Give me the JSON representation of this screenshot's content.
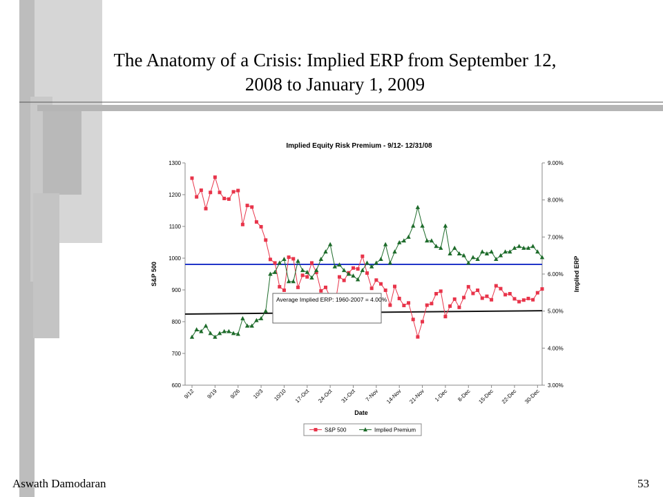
{
  "slide": {
    "title_line1": "The Anatomy of a Crisis: Implied ERP from September 12,",
    "title_line2": "2008 to January 1, 2009",
    "footer": "Aswath Damodaran",
    "page_number": "53"
  },
  "chart_data": {
    "type": "line",
    "title": "Implied Equity Risk Premium - 9/12- 12/31/08",
    "x_label": "Date",
    "y_label": "S&P 500",
    "y2_label": "Implied ERP",
    "categories": [
      "9/12",
      null,
      null,
      null,
      null,
      "9/19",
      null,
      null,
      null,
      null,
      "9/26",
      null,
      null,
      null,
      null,
      "10/3",
      null,
      null,
      null,
      null,
      "10/10",
      null,
      null,
      null,
      null,
      "17-Oct",
      null,
      null,
      null,
      null,
      "24-Oct",
      null,
      null,
      null,
      null,
      "31-Oct",
      null,
      null,
      null,
      null,
      "7-Nov",
      null,
      null,
      null,
      null,
      "14-Nov",
      null,
      null,
      null,
      null,
      "21-Nov",
      null,
      null,
      null,
      null,
      "1-Dec",
      null,
      null,
      null,
      null,
      "8-Dec",
      null,
      null,
      null,
      null,
      "15-Dec",
      null,
      null,
      null,
      null,
      "22-Dec",
      null,
      null,
      null,
      null,
      "30-Dec",
      null
    ],
    "series": [
      {
        "name": "S&P 500",
        "color": "#e8344a",
        "marker": "square",
        "values": [
          1252,
          1193,
          1214,
          1156,
          1207,
          1255,
          1207,
          1188,
          1186,
          1209,
          1213,
          1106,
          1166,
          1161,
          1114,
          1099,
          1057,
          996,
          985,
          910,
          899,
          1003,
          998,
          908,
          946,
          941,
          985,
          955,
          897,
          908,
          877,
          849,
          941,
          930,
          954,
          969,
          966,
          1006,
          953,
          905,
          931,
          919,
          899,
          852,
          911,
          873,
          851,
          859,
          807,
          752,
          800,
          852,
          857,
          888,
          896,
          816,
          849,
          871,
          845,
          876,
          910,
          889,
          899,
          874,
          880,
          869,
          913,
          904,
          885,
          888,
          872,
          863,
          868,
          873,
          869,
          891,
          903
        ]
      },
      {
        "name": "Implied Premium",
        "color": "#1d6b2a",
        "marker": "triangle",
        "axis": "y2",
        "values": [
          4.3,
          4.5,
          4.45,
          4.6,
          4.4,
          4.3,
          4.4,
          4.45,
          4.45,
          4.4,
          4.38,
          4.8,
          4.6,
          4.6,
          4.75,
          4.8,
          5.0,
          6.0,
          6.05,
          6.3,
          6.4,
          5.8,
          5.8,
          6.35,
          6.1,
          6.05,
          5.9,
          6.1,
          6.4,
          6.6,
          6.8,
          6.2,
          6.25,
          6.1,
          6.0,
          5.95,
          5.85,
          6.1,
          6.3,
          6.2,
          6.3,
          6.4,
          6.8,
          6.3,
          6.6,
          6.85,
          6.9,
          7.0,
          7.3,
          7.8,
          7.3,
          6.9,
          6.9,
          6.75,
          6.7,
          7.3,
          6.55,
          6.7,
          6.55,
          6.5,
          6.3,
          6.45,
          6.4,
          6.6,
          6.55,
          6.6,
          6.4,
          6.5,
          6.6,
          6.6,
          6.7,
          6.75,
          6.7,
          6.7,
          6.75,
          6.6,
          6.45
        ]
      }
    ],
    "reference_lines": [
      {
        "color": "#2035c8",
        "axis": "y2",
        "values": [
          6.26,
          6.26
        ]
      },
      {
        "color": "#111111",
        "axis": "y2",
        "values": [
          4.92,
          5.01
        ]
      }
    ],
    "annotation": "Average Implied ERP: 1960-2007 = 4.00%",
    "ylim": [
      600,
      1300
    ],
    "yticks": [
      600,
      700,
      800,
      900,
      1000,
      1100,
      1200,
      1300
    ],
    "y2lim": [
      3,
      9
    ],
    "y2ticks": [
      {
        "value": 3,
        "label": "3.00%"
      },
      {
        "value": 4,
        "label": "4.00%"
      },
      {
        "value": 5,
        "label": "5.00%"
      },
      {
        "value": 6,
        "label": "6.00%"
      },
      {
        "value": 7,
        "label": "7.00%"
      },
      {
        "value": 8,
        "label": "8.00%"
      },
      {
        "value": 9,
        "label": "9.00%"
      }
    ],
    "grid": false,
    "legend": "bottom"
  }
}
